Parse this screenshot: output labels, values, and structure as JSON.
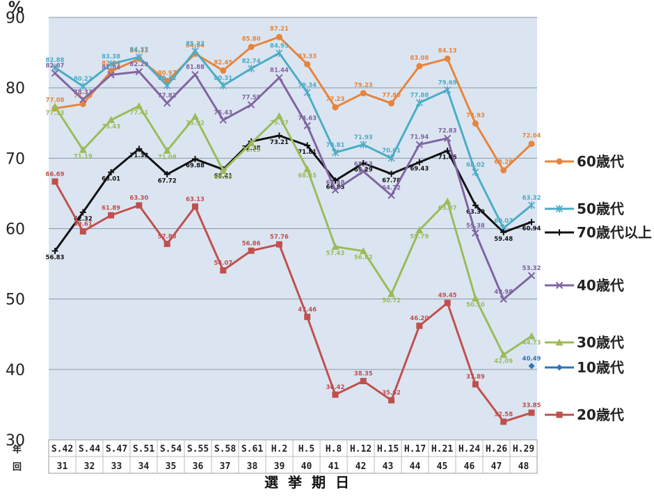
{
  "chart_data": {
    "type": "line",
    "ylabel": "%",
    "xlabel": "選挙期日",
    "ylim": [
      30,
      90
    ],
    "yticks": [
      30,
      40,
      50,
      60,
      70,
      80,
      90
    ],
    "grid": true,
    "legend_position": "right",
    "row_labels": {
      "year": "年",
      "round": "回"
    },
    "categories": [
      "S.42",
      "S.44",
      "S.47",
      "S.51",
      "S.54",
      "S.55",
      "S.58",
      "S.61",
      "H.2",
      "H.5",
      "H.8",
      "H.12",
      "H.15",
      "H.17",
      "H.21",
      "H.24",
      "H.26",
      "H.29"
    ],
    "rounds": [
      "31",
      "32",
      "33",
      "34",
      "35",
      "36",
      "37",
      "38",
      "39",
      "40",
      "41",
      "42",
      "43",
      "44",
      "45",
      "46",
      "47",
      "48"
    ],
    "series": [
      {
        "name": "60歳代",
        "color": "#e8843a",
        "marker": "circle",
        "values": [
          77.08,
          77.7,
          82.34,
          84.13,
          80.97,
          84.84,
          82.45,
          85.8,
          87.21,
          83.33,
          77.23,
          79.23,
          77.8,
          83.08,
          84.13,
          74.93,
          68.28,
          72.04
        ],
        "labels": [
          "77.08",
          "77.70",
          "82.34",
          "84.13",
          "80.97",
          "84.84",
          "82.45",
          "85.80",
          "87.21",
          "83.33",
          "77.23",
          "79.23",
          "77.80",
          "83.08",
          "84.13",
          "74.93",
          "68.28",
          "72.04"
        ]
      },
      {
        "name": "50歳代",
        "color": "#4bacc6",
        "marker": "star",
        "values": [
          82.88,
          80.22,
          83.38,
          84.37,
          80.32,
          85.23,
          80.31,
          82.74,
          84.93,
          79.34,
          70.81,
          71.93,
          70.01,
          77.88,
          79.69,
          68.02,
          60.07,
          63.32
        ],
        "labels": [
          "82.88",
          "80.22",
          "83.38",
          "84.37",
          "80.32",
          "85.23",
          "80.31",
          "82.74",
          "84.93",
          "79.34",
          "70.81",
          "71.93",
          "70.01",
          "77.88",
          "79.69",
          "68.02",
          "60.07",
          "63.32"
        ]
      },
      {
        "name": "70歳代以上",
        "color": "#111111",
        "marker": "plus",
        "values": [
          56.83,
          62.32,
          68.01,
          71.33,
          67.72,
          69.88,
          68.41,
          72.38,
          73.21,
          71.81,
          66.83,
          69.29,
          67.78,
          69.43,
          71.06,
          63.3,
          59.48,
          60.94
        ],
        "labels": [
          "56.83",
          "62.32",
          "68.01",
          "71.33",
          "67.72",
          "69.88",
          "68.41",
          "72.38",
          "73.21",
          "71.81",
          "66.83",
          "69.29",
          "67.78",
          "69.43",
          "71.06",
          "63.30",
          "59.48",
          "60.94"
        ]
      },
      {
        "name": "40歳代",
        "color": "#8064a2",
        "marker": "x",
        "values": [
          82.07,
          78.33,
          81.84,
          82.29,
          77.82,
          81.88,
          75.43,
          77.59,
          81.44,
          74.63,
          65.48,
          68.13,
          64.72,
          71.94,
          72.83,
          59.38,
          49.98,
          53.32
        ],
        "labels": [
          "82.07",
          "78.33",
          "81.84",
          "82.29",
          "77.82",
          "81.88",
          "75.43",
          "77.59",
          "81.44",
          "74.63",
          "65.48",
          "68.13",
          "64.72",
          "71.94",
          "72.83",
          "59.38",
          "49.98",
          "53.32"
        ]
      },
      {
        "name": "30歳代",
        "color": "#9bbb59",
        "marker": "triangle",
        "values": [
          77.33,
          71.19,
          75.43,
          77.41,
          71.08,
          75.92,
          68.23,
          72.13,
          75.97,
          68.45,
          57.43,
          56.82,
          50.72,
          59.79,
          63.87,
          50.1,
          42.09,
          44.73
        ],
        "labels": [
          "77.33",
          "71.19",
          "75.43",
          "77.41",
          "71.08",
          "75.92",
          "68.23",
          "72.13",
          "75.97",
          "68.45",
          "57.43",
          "56.82",
          "50.72",
          "59.79",
          "63.87",
          "50.10",
          "42.09",
          "44.73"
        ]
      },
      {
        "name": "10歳代",
        "color": "#2e75b6",
        "marker": "diamond",
        "values": [
          null,
          null,
          null,
          null,
          null,
          null,
          null,
          null,
          null,
          null,
          null,
          null,
          null,
          null,
          null,
          null,
          null,
          40.49
        ],
        "labels": [
          "",
          "",
          "",
          "",
          "",
          "",
          "",
          "",
          "",
          "",
          "",
          "",
          "",
          "",
          "",
          "",
          "",
          "40.49"
        ]
      },
      {
        "name": "20歳代",
        "color": "#c0504d",
        "marker": "square",
        "values": [
          66.69,
          59.61,
          61.89,
          63.3,
          57.83,
          63.13,
          54.07,
          56.86,
          57.76,
          47.46,
          36.42,
          38.35,
          35.62,
          46.2,
          49.45,
          37.89,
          32.58,
          33.85
        ],
        "labels": [
          "66.69",
          "59.61",
          "61.89",
          "63.30",
          "57.83",
          "63.13",
          "54.07",
          "56.86",
          "57.76",
          "47.46",
          "36.42",
          "38.35",
          "35.62",
          "46.20",
          "49.45",
          "37.89",
          "32.58",
          "33.85"
        ]
      }
    ]
  }
}
